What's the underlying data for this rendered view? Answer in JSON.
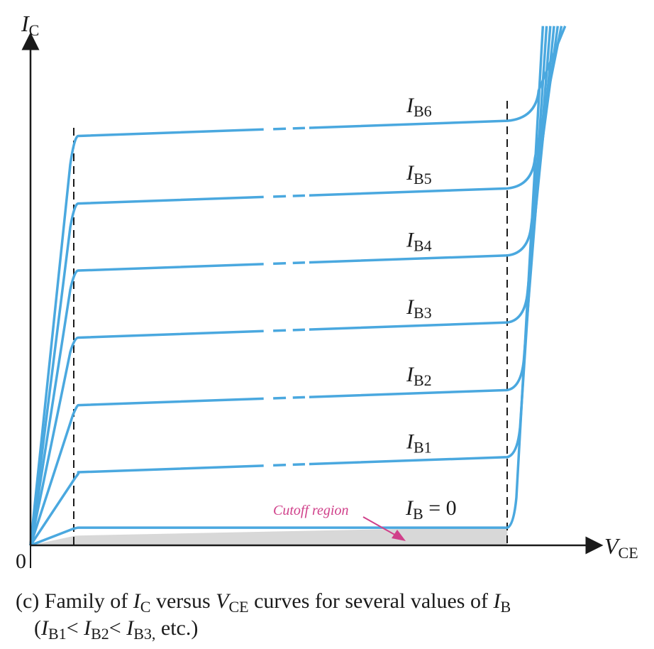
{
  "chart_data": {
    "type": "line",
    "title": "",
    "xlabel": {
      "main": "V",
      "sub": "CE"
    },
    "ylabel": {
      "main": "I",
      "sub": "C"
    },
    "origin_label": "0",
    "x_range": [
      0,
      10
    ],
    "y_range": [
      0,
      10
    ],
    "grid": false,
    "curve_color": "#4aa8df",
    "series": [
      {
        "name": "IB=0",
        "label_main": "I",
        "label_sub": "B",
        "label_suffix": " = 0",
        "sat_x": 0.8,
        "flat_start": 0.35,
        "flat_end": 0.35
      },
      {
        "name": "IB1",
        "label_main": "I",
        "label_sub": "B1",
        "label_suffix": "",
        "sat_x": 0.85,
        "flat_start": 1.45,
        "flat_end": 1.75
      },
      {
        "name": "IB2",
        "label_main": "I",
        "label_sub": "B2",
        "label_suffix": "",
        "sat_x": 0.8,
        "flat_start": 2.78,
        "flat_end": 3.08
      },
      {
        "name": "IB3",
        "label_main": "I",
        "label_sub": "B3",
        "label_suffix": "",
        "sat_x": 0.75,
        "flat_start": 4.12,
        "flat_end": 4.42
      },
      {
        "name": "IB4",
        "label_main": "I",
        "label_sub": "B4",
        "label_suffix": "",
        "sat_x": 0.75,
        "flat_start": 5.45,
        "flat_end": 5.75
      },
      {
        "name": "IB5",
        "label_main": "I",
        "label_sub": "B5",
        "label_suffix": "",
        "sat_x": 0.75,
        "flat_start": 6.78,
        "flat_end": 7.08
      },
      {
        "name": "IB6",
        "label_main": "I",
        "label_sub": "B6",
        "label_suffix": "",
        "sat_x": 0.75,
        "flat_start": 8.12,
        "flat_end": 8.42
      }
    ],
    "annotations": {
      "cutoff_region": {
        "text": "Cutoff region",
        "color": "#d0408a"
      }
    }
  },
  "caption": {
    "line1": {
      "t1": "(c) Family of ",
      "i1": "I",
      "s1": "C",
      "t2": " versus ",
      "i2": "V",
      "s2": "CE",
      "t3": " curves for several values of ",
      "i3": "I",
      "s3": "B"
    },
    "line2": {
      "t1": "(",
      "i1": "I",
      "s1": "B1",
      "t2": "< ",
      "i2": "I",
      "s2": "B2",
      "t3": "< ",
      "i3": "I",
      "s3": "B3,",
      "t4": " etc.)"
    }
  }
}
